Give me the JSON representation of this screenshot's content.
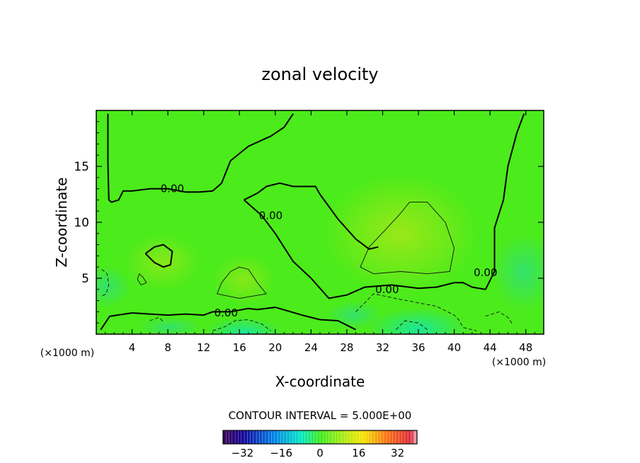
{
  "chart_data": {
    "type": "contour",
    "title": "zonal velocity",
    "xlabel": "X-coordinate",
    "ylabel": "Z-coordinate",
    "x_unit_left": "(×1000 m)",
    "x_unit_right": "(×1000 m)",
    "xlim": [
      0,
      50
    ],
    "ylim": [
      0,
      20
    ],
    "xticks": [
      4,
      8,
      12,
      16,
      20,
      24,
      28,
      32,
      36,
      40,
      44,
      48
    ],
    "yticks": [
      5,
      10,
      15
    ],
    "contour_interval_text": "CONTOUR INTERVAL = 5.000E+00",
    "contour_label": "0.00",
    "colorbar": {
      "min": -40,
      "max": 40,
      "ticks": [
        -32,
        -16,
        0,
        16,
        32
      ],
      "tick_labels": [
        "−32",
        "−16",
        "0",
        "16",
        "32"
      ]
    },
    "zero_contours": [
      [
        [
          0.5,
          0.4
        ],
        [
          1.5,
          1.6
        ],
        [
          4,
          1.9
        ],
        [
          6,
          1.8
        ],
        [
          8,
          1.7
        ],
        [
          10,
          1.8
        ],
        [
          12,
          1.7
        ],
        [
          13,
          2.0
        ],
        [
          15,
          2.0
        ],
        [
          17,
          2.3
        ],
        [
          18,
          2.2
        ],
        [
          20,
          2.4
        ],
        [
          23,
          1.7
        ],
        [
          25,
          1.3
        ],
        [
          27,
          1.2
        ],
        [
          29,
          0.4
        ]
      ],
      [
        [
          1.3,
          19.7
        ],
        [
          1.3,
          15.5
        ],
        [
          1.4,
          12
        ],
        [
          1.7,
          11.8
        ],
        [
          2.5,
          12
        ],
        [
          3,
          12.8
        ],
        [
          4,
          12.8
        ],
        [
          6,
          13.0
        ],
        [
          8,
          13.0
        ],
        [
          10,
          12.7
        ],
        [
          11.5,
          12.7
        ],
        [
          13,
          12.8
        ],
        [
          14,
          13.5
        ],
        [
          15,
          15.5
        ],
        [
          17,
          16.8
        ],
        [
          19.5,
          17.7
        ],
        [
          21,
          18.5
        ],
        [
          22,
          19.7
        ]
      ],
      [
        [
          16.5,
          12
        ],
        [
          18.5,
          10.6
        ],
        [
          20,
          9
        ],
        [
          22,
          6.5
        ],
        [
          24,
          5
        ],
        [
          26,
          3.2
        ],
        [
          28,
          3.5
        ],
        [
          30,
          4.2
        ],
        [
          33,
          4.4
        ],
        [
          36,
          4.1
        ],
        [
          38,
          4.2
        ],
        [
          40,
          4.6
        ],
        [
          41,
          4.6
        ],
        [
          42,
          4.2
        ],
        [
          43.5,
          4.0
        ],
        [
          44.5,
          5.6
        ],
        [
          44.5,
          9.5
        ],
        [
          45.5,
          12
        ],
        [
          46,
          15
        ],
        [
          47,
          18
        ],
        [
          47.8,
          19.7
        ]
      ],
      [
        [
          16.5,
          12
        ],
        [
          18,
          12.6
        ],
        [
          19,
          13.2
        ],
        [
          20.5,
          13.5
        ],
        [
          22,
          13.2
        ],
        [
          24.5,
          13.2
        ],
        [
          25,
          12.5
        ],
        [
          27,
          10.3
        ],
        [
          29,
          8.5
        ],
        [
          30.5,
          7.6
        ],
        [
          31.5,
          7.8
        ]
      ],
      [
        [
          5.5,
          7.2
        ],
        [
          6.5,
          7.8
        ],
        [
          7.5,
          8.0
        ],
        [
          8.5,
          7.4
        ],
        [
          8.3,
          6.2
        ],
        [
          7.5,
          6.0
        ],
        [
          6.5,
          6.4
        ],
        [
          5.5,
          7.2
        ]
      ]
    ],
    "positive_contours": [
      [
        [
          13.5,
          3.6
        ],
        [
          14,
          4.6
        ],
        [
          15,
          5.6
        ],
        [
          16,
          6.0
        ],
        [
          17,
          5.8
        ],
        [
          18,
          4.6
        ],
        [
          19,
          3.6
        ],
        [
          16,
          3.2
        ],
        [
          13.5,
          3.6
        ]
      ],
      [
        [
          29.5,
          6.0
        ],
        [
          30.5,
          7.8
        ],
        [
          32.5,
          9.5
        ],
        [
          34,
          10.8
        ],
        [
          35,
          11.8
        ],
        [
          37,
          11.8
        ],
        [
          39,
          10
        ],
        [
          40,
          7.7
        ],
        [
          39.5,
          5.6
        ],
        [
          37,
          5.4
        ],
        [
          34,
          5.6
        ],
        [
          31,
          5.4
        ],
        [
          29.5,
          6.0
        ]
      ],
      [
        [
          4.8,
          5.4
        ],
        [
          5.2,
          5.1
        ],
        [
          5.6,
          4.6
        ],
        [
          5.0,
          4.4
        ],
        [
          4.6,
          4.9
        ],
        [
          4.8,
          5.4
        ]
      ]
    ],
    "negative_contours": [
      [
        [
          0.6,
          5.8
        ],
        [
          1.2,
          5.4
        ],
        [
          1.4,
          4.4
        ],
        [
          1.1,
          3.6
        ],
        [
          0.6,
          3.4
        ]
      ],
      [
        [
          13,
          0.3
        ],
        [
          14.5,
          0.7
        ],
        [
          15.5,
          1.2
        ],
        [
          17,
          1.3
        ],
        [
          18.5,
          0.9
        ],
        [
          19.5,
          0.3
        ]
      ],
      [
        [
          29,
          2.0
        ],
        [
          31,
          3.6
        ],
        [
          34,
          3.1
        ],
        [
          36,
          2.8
        ],
        [
          38,
          2.5
        ],
        [
          40,
          1.7
        ],
        [
          40.5,
          1.3
        ],
        [
          41,
          0.6
        ],
        [
          42.5,
          0.3
        ]
      ],
      [
        [
          33.5,
          0.4
        ],
        [
          34.5,
          1.2
        ],
        [
          36,
          1.0
        ],
        [
          37,
          0.4
        ]
      ],
      [
        [
          43.5,
          1.6
        ],
        [
          45,
          2.0
        ],
        [
          46,
          1.5
        ],
        [
          46.5,
          0.9
        ]
      ],
      [
        [
          6,
          1.2
        ],
        [
          7,
          1.5
        ],
        [
          7.5,
          1.1
        ]
      ]
    ],
    "label_positions": [
      [
        8.5,
        13.0
      ],
      [
        19.5,
        10.6
      ],
      [
        14.5,
        1.9
      ],
      [
        32.5,
        4.0
      ],
      [
        43.5,
        5.5
      ]
    ]
  }
}
